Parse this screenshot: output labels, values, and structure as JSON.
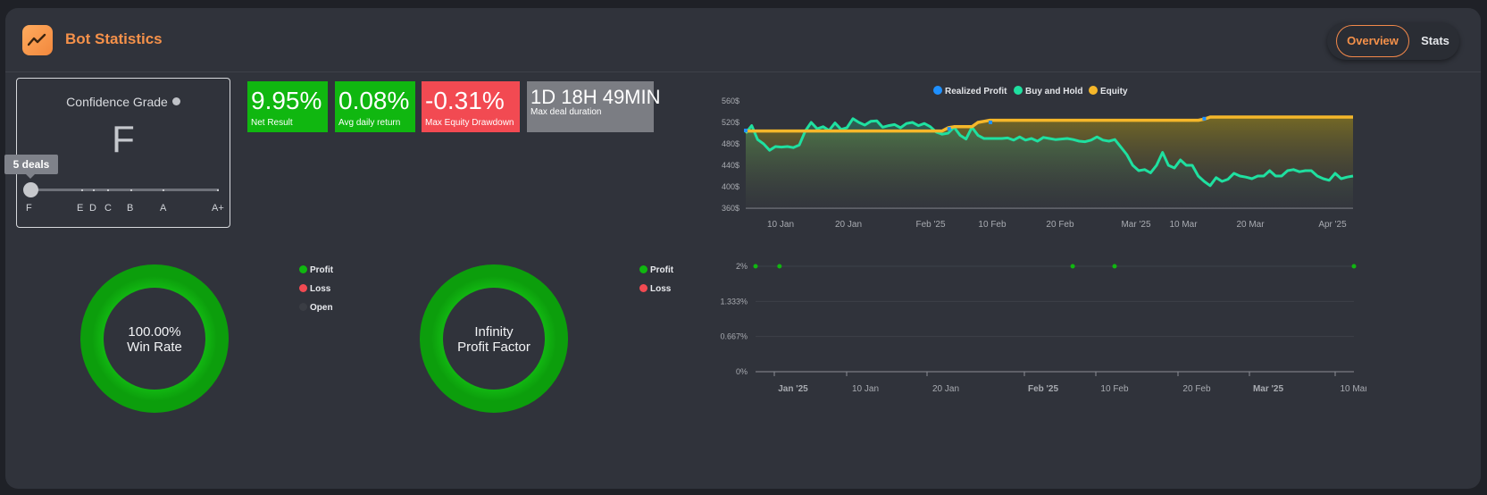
{
  "header": {
    "title": "Bot Statistics",
    "logo_icon": "trend-chart-icon"
  },
  "tabs": {
    "overview": "Overview",
    "stats": "Stats"
  },
  "grade": {
    "title": "Confidence Grade",
    "value": "F",
    "deals_tooltip": "5 deals",
    "labels": [
      "F",
      "E",
      "D",
      "C",
      "B",
      "A",
      "A+"
    ]
  },
  "stats": [
    {
      "value": "9.95%",
      "label": "Net Result",
      "color": "#10b710"
    },
    {
      "value": "0.08%",
      "label": "Avg daily return",
      "color": "#10b710"
    },
    {
      "value": "-0.31%",
      "label": "Max Equity Drawdown",
      "color": "#f24a52"
    },
    {
      "value": "1D 18H 49MIN",
      "label": "Max deal duration",
      "color": "#7b7d83"
    }
  ],
  "winrate": {
    "line1": "100.00%",
    "line2": "Win Rate",
    "legend": [
      {
        "label": "Profit",
        "color": "#10b710"
      },
      {
        "label": "Loss",
        "color": "#f24a52"
      },
      {
        "label": "Open",
        "color": "#3a3d44"
      }
    ]
  },
  "profit_factor": {
    "line1": "Infinity",
    "line2": "Profit Factor",
    "legend": [
      {
        "label": "Profit",
        "color": "#10b710"
      },
      {
        "label": "Loss",
        "color": "#f24a52"
      }
    ]
  },
  "chart_data": [
    {
      "type": "line",
      "legend": [
        {
          "name": "Realized Profit",
          "color": "#1e90ff"
        },
        {
          "name": "Buy and Hold",
          "color": "#1fe0a0"
        },
        {
          "name": "Equity",
          "color": "#f5b72a"
        }
      ],
      "ylim": [
        360,
        560
      ],
      "yticks": [
        "560$",
        "520$",
        "480$",
        "440$",
        "400$",
        "360$"
      ],
      "xticks": [
        "10 Jan",
        "20 Jan",
        "Feb '25",
        "10 Feb",
        "20 Feb",
        "Mar '25",
        "10 Mar",
        "20 Mar",
        "Apr '25"
      ],
      "series": [
        {
          "name": "Buy and Hold",
          "values": [
            500,
            514,
            488,
            480,
            468,
            475,
            474,
            475,
            473,
            478,
            504,
            520,
            508,
            512,
            505,
            519,
            507,
            510,
            527,
            520,
            515,
            522,
            523,
            511,
            514,
            516,
            510,
            518,
            520,
            514,
            518,
            512,
            502,
            498,
            500,
            511,
            496,
            489,
            511,
            496,
            490,
            490,
            490,
            490,
            491,
            487,
            493,
            487,
            490,
            485,
            492,
            490,
            488,
            489,
            490,
            488,
            485,
            484,
            487,
            493,
            487,
            485,
            488,
            474,
            460,
            440,
            430,
            432,
            426,
            440,
            464,
            440,
            435,
            450,
            440,
            440,
            420,
            410,
            402,
            417,
            410,
            414,
            425,
            420,
            418,
            415,
            420,
            420,
            430,
            420,
            420,
            430,
            432,
            428,
            430,
            430,
            420,
            415,
            412,
            425,
            415,
            418,
            420
          ]
        },
        {
          "name": "Equity",
          "values": [
            504,
            504,
            504,
            504,
            504,
            504,
            504,
            504,
            504,
            504,
            504,
            504,
            504,
            504,
            504,
            504,
            504,
            504,
            504,
            504,
            504,
            504,
            504,
            504,
            504,
            504,
            504,
            504,
            504,
            504,
            504,
            504,
            504,
            504,
            510,
            512,
            512,
            512,
            512,
            520,
            522,
            524,
            524,
            524,
            524,
            524,
            524,
            524,
            524,
            524,
            524,
            524,
            524,
            524,
            524,
            524,
            524,
            524,
            524,
            524,
            524,
            524,
            524,
            524,
            524,
            524,
            524,
            524,
            524,
            524,
            524,
            524,
            524,
            524,
            524,
            524,
            524,
            526,
            530,
            530,
            530,
            530,
            530,
            530,
            530,
            530,
            530,
            530,
            530,
            530,
            530,
            530,
            530,
            530,
            530,
            530,
            530,
            530,
            530,
            530,
            530,
            530,
            530
          ]
        },
        {
          "name": "Realized Profit",
          "points": [
            [
              0,
              505
            ],
            [
              33.5,
              508
            ],
            [
              40.3,
              520
            ],
            [
              75.5,
              527
            ]
          ]
        }
      ]
    },
    {
      "type": "scatter",
      "ylim": [
        0,
        2
      ],
      "yticks": [
        "2%",
        "1.333%",
        "0.667%",
        "0%"
      ],
      "xticks": [
        "Jan '25",
        "10 Jan",
        "20 Jan",
        "Feb '25",
        "10 Feb",
        "20 Feb",
        "Mar '25",
        "10 Mar"
      ],
      "series": [
        {
          "name": "Profit",
          "color": "#10b710",
          "points": [
            [
              0,
              2
            ],
            [
              4,
              2
            ],
            [
              53,
              2
            ],
            [
              60,
              2
            ],
            [
              100,
              2
            ]
          ]
        }
      ]
    },
    {
      "type": "pie",
      "title": "Win Rate",
      "values": [
        100,
        0,
        0
      ],
      "categories": [
        "Profit",
        "Loss",
        "Open"
      ]
    },
    {
      "type": "pie",
      "title": "Profit Factor",
      "values": [
        100,
        0
      ],
      "categories": [
        "Profit",
        "Loss"
      ]
    }
  ]
}
